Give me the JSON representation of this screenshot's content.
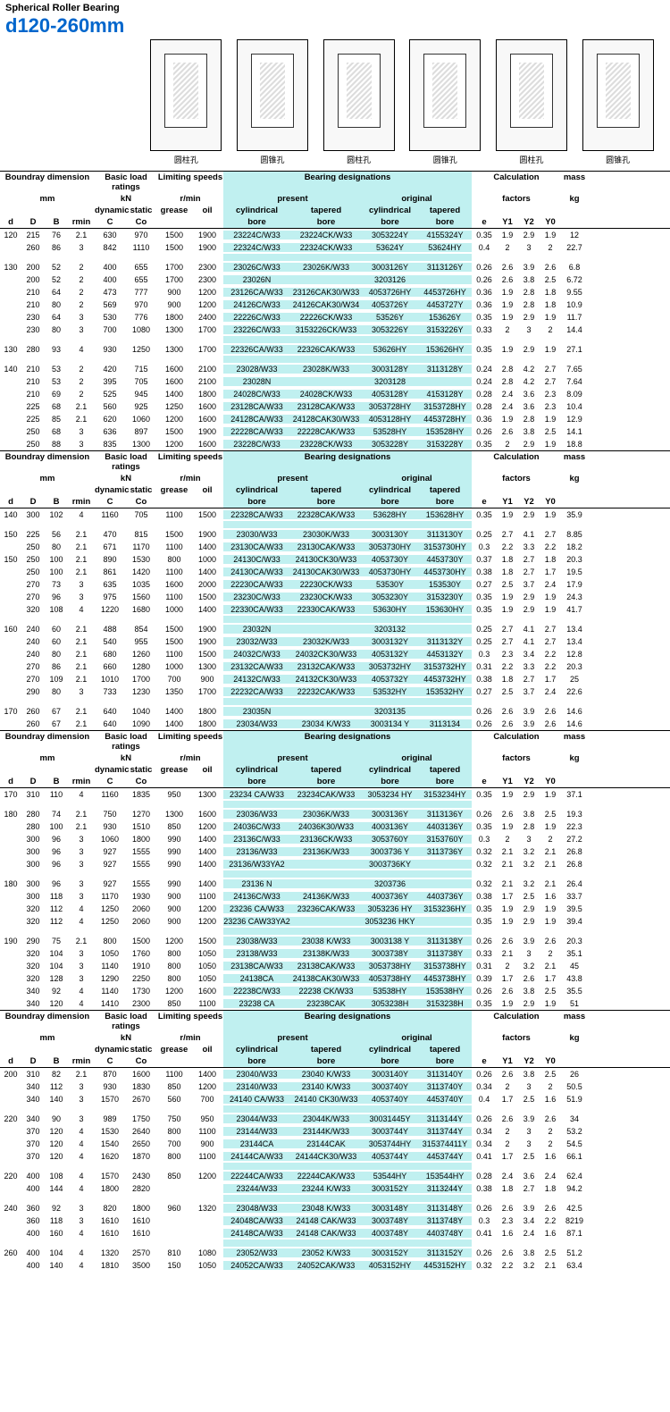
{
  "title": "Spherical Roller Bearing",
  "size_range": "d120-260mm",
  "size_range_color": "#0066cc",
  "highlight_color": "#c0f0f0",
  "diagram_captions": [
    "圆柱孔",
    "圆锥孔",
    "圆柱孔",
    "圆锥孔",
    "圆柱孔",
    "圆锥孔"
  ],
  "header": {
    "group_dim": "Boundray dimension",
    "unit_dim": "mm",
    "group_load": "Basic load ratings",
    "unit_load": "kN",
    "load_dynamic": "dynamic",
    "load_static": "static",
    "group_speed": "Limiting speeds",
    "unit_speed": "r/min",
    "speed_grease": "grease",
    "speed_oil": "oil",
    "group_des": "Bearing designations",
    "des_present": "present",
    "des_original": "original",
    "des_cyl": "cylindrical",
    "des_tap": "tapered",
    "des_bore": "bore",
    "group_calc": "Calculation",
    "unit_calc": "factors",
    "group_mass": "mass",
    "unit_mass": "kg",
    "d": "d",
    "D": "D",
    "B": "B",
    "rmin": "rmin",
    "C": "C",
    "Co": "Co",
    "e": "e",
    "Y1": "Y1",
    "Y2": "Y2",
    "Y0": "Y0"
  },
  "sections": [
    [
      [
        "120",
        "215",
        "76",
        "2.1",
        "630",
        "970",
        "1500",
        "1900",
        "23224C/W33",
        "23224CK/W33",
        "3053224Y",
        "4155324Y",
        "0.35",
        "1.9",
        "2.9",
        "1.9",
        "12"
      ],
      [
        "",
        "260",
        "86",
        "3",
        "842",
        "1110",
        "1500",
        "1900",
        "22324C/W33",
        "22324CK/W33",
        "53624Y",
        "53624HY",
        "0.4",
        "2",
        "3",
        "2",
        "22.7"
      ],
      [
        "gap"
      ],
      [
        "130",
        "200",
        "52",
        "2",
        "400",
        "655",
        "1700",
        "2300",
        "23026C/W33",
        "23026K/W33",
        "3003126Y",
        "3113126Y",
        "0.26",
        "2.6",
        "3.9",
        "2.6",
        "6.8"
      ],
      [
        "",
        "200",
        "52",
        "2",
        "400",
        "655",
        "1700",
        "2300",
        "23026N",
        "",
        "3203126",
        "",
        "0.26",
        "2.6",
        "3.8",
        "2.5",
        "6.72"
      ],
      [
        "",
        "210",
        "64",
        "2",
        "473",
        "777",
        "900",
        "1200",
        "23126CA/W33",
        "23126CAK30/W33",
        "4053726HY",
        "4453726HY",
        "0.36",
        "1.9",
        "2.8",
        "1.8",
        "9.55"
      ],
      [
        "",
        "210",
        "80",
        "2",
        "569",
        "970",
        "900",
        "1200",
        "24126C/W33",
        "24126CAK30/W34",
        "4053726Y",
        "4453727Y",
        "0.36",
        "1.9",
        "2.8",
        "1.8",
        "10.9"
      ],
      [
        "",
        "230",
        "64",
        "3",
        "530",
        "776",
        "1800",
        "2400",
        "22226C/W33",
        "22226CK/W33",
        "53526Y",
        "153626Y",
        "0.35",
        "1.9",
        "2.9",
        "1.9",
        "11.7"
      ],
      [
        "",
        "230",
        "80",
        "3",
        "700",
        "1080",
        "1300",
        "1700",
        "23226C/W33",
        "3153226CK/W33",
        "3053226Y",
        "3153226Y",
        "0.33",
        "2",
        "3",
        "2",
        "14.4"
      ],
      [
        "gap"
      ],
      [
        "130",
        "280",
        "93",
        "4",
        "930",
        "1250",
        "1300",
        "1700",
        "22326CA/W33",
        "22326CAK/W33",
        "53626HY",
        "153626HY",
        "0.35",
        "1.9",
        "2.9",
        "1.9",
        "27.1"
      ],
      [
        "gap"
      ],
      [
        "140",
        "210",
        "53",
        "2",
        "420",
        "715",
        "1600",
        "2100",
        "23028/W33",
        "23028K/W33",
        "3003128Y",
        "3113128Y",
        "0.24",
        "2.8",
        "4.2",
        "2.7",
        "7.65"
      ],
      [
        "",
        "210",
        "53",
        "2",
        "395",
        "705",
        "1600",
        "2100",
        "23028N",
        "",
        "3203128",
        "",
        "0.24",
        "2.8",
        "4.2",
        "2.7",
        "7.64"
      ],
      [
        "",
        "210",
        "69",
        "2",
        "525",
        "945",
        "1400",
        "1800",
        "24028C/W33",
        "24028CK/W33",
        "4053128Y",
        "4153128Y",
        "0.28",
        "2.4",
        "3.6",
        "2.3",
        "8.09"
      ],
      [
        "",
        "225",
        "68",
        "2.1",
        "560",
        "925",
        "1250",
        "1600",
        "23128CA/W33",
        "23128CAK/W33",
        "3053728HY",
        "3153728HY",
        "0.28",
        "2.4",
        "3.6",
        "2.3",
        "10.4"
      ],
      [
        "",
        "225",
        "85",
        "2.1",
        "620",
        "1060",
        "1200",
        "1600",
        "24128CA/W33",
        "24128CAK30/W33",
        "4053128HY",
        "4453728HY",
        "0.36",
        "1.9",
        "2.8",
        "1.9",
        "12.9"
      ],
      [
        "",
        "250",
        "68",
        "3",
        "636",
        "897",
        "1500",
        "1900",
        "22228CA/W33",
        "22228CAK/W33",
        "53528HY",
        "153528HY",
        "0.26",
        "2.6",
        "3.8",
        "2.5",
        "14.1"
      ],
      [
        "",
        "250",
        "88",
        "3",
        "835",
        "1300",
        "1200",
        "1600",
        "23228C/W33",
        "23228CK/W33",
        "3053228Y",
        "3153228Y",
        "0.35",
        "2",
        "2.9",
        "1.9",
        "18.8"
      ]
    ],
    [
      [
        "140",
        "300",
        "102",
        "4",
        "1160",
        "705",
        "1100",
        "1500",
        "22328CA/W33",
        "22328CAK/W33",
        "53628HY",
        "153628HY",
        "0.35",
        "1.9",
        "2.9",
        "1.9",
        "35.9"
      ],
      [
        "gap"
      ],
      [
        "150",
        "225",
        "56",
        "2.1",
        "470",
        "815",
        "1500",
        "1900",
        "23030/W33",
        "23030K/W33",
        "3003130Y",
        "3113130Y",
        "0.25",
        "2.7",
        "4.1",
        "2.7",
        "8.85"
      ],
      [
        "",
        "250",
        "80",
        "2.1",
        "671",
        "1170",
        "1100",
        "1400",
        "23130CA/W33",
        "23130CAK/W33",
        "3053730HY",
        "3153730HY",
        "0.3",
        "2.2",
        "3.3",
        "2.2",
        "18.2"
      ],
      [
        "150",
        "250",
        "100",
        "2.1",
        "890",
        "1530",
        "800",
        "1000",
        "24130C/W33",
        "24130CK30/W33",
        "4053730Y",
        "4453730Y",
        "0.37",
        "1.8",
        "2.7",
        "1.8",
        "20.3"
      ],
      [
        "",
        "250",
        "100",
        "2.1",
        "861",
        "1420",
        "1100",
        "1400",
        "24130CA/W33",
        "24130CAK30/W33",
        "4053730HY",
        "4453730HY",
        "0.38",
        "1.8",
        "2.7",
        "1.7",
        "19.5"
      ],
      [
        "",
        "270",
        "73",
        "3",
        "635",
        "1035",
        "1600",
        "2000",
        "22230CA/W33",
        "22230CK/W33",
        "53530Y",
        "153530Y",
        "0.27",
        "2.5",
        "3.7",
        "2.4",
        "17.9"
      ],
      [
        "",
        "270",
        "96",
        "3",
        "975",
        "1560",
        "1100",
        "1500",
        "23230C/W33",
        "23230CK/W33",
        "3053230Y",
        "3153230Y",
        "0.35",
        "1.9",
        "2.9",
        "1.9",
        "24.3"
      ],
      [
        "",
        "320",
        "108",
        "4",
        "1220",
        "1680",
        "1000",
        "1400",
        "22330CA/W33",
        "22330CAK/W33",
        "53630HY",
        "153630HY",
        "0.35",
        "1.9",
        "2.9",
        "1.9",
        "41.7"
      ],
      [
        "gap"
      ],
      [
        "160",
        "240",
        "60",
        "2.1",
        "488",
        "854",
        "1500",
        "1900",
        "23032N",
        "",
        "3203132",
        "",
        "0.25",
        "2.7",
        "4.1",
        "2.7",
        "13.4"
      ],
      [
        "",
        "240",
        "60",
        "2.1",
        "540",
        "955",
        "1500",
        "1900",
        "23032/W33",
        "23032K/W33",
        "3003132Y",
        "3113132Y",
        "0.25",
        "2.7",
        "4.1",
        "2.7",
        "13.4"
      ],
      [
        "",
        "240",
        "80",
        "2.1",
        "680",
        "1260",
        "1100",
        "1500",
        "24032C/W33",
        "24032CK30/W33",
        "4053132Y",
        "4453132Y",
        "0.3",
        "2.3",
        "3.4",
        "2.2",
        "12.8"
      ],
      [
        "",
        "270",
        "86",
        "2.1",
        "660",
        "1280",
        "1000",
        "1300",
        "23132CA/W33",
        "23132CAK/W33",
        "3053732HY",
        "3153732HY",
        "0.31",
        "2.2",
        "3.3",
        "2.2",
        "20.3"
      ],
      [
        "",
        "270",
        "109",
        "2.1",
        "1010",
        "1700",
        "700",
        "900",
        "24132C/W33",
        "24132CK30/W33",
        "4053732Y",
        "4453732HY",
        "0.38",
        "1.8",
        "2.7",
        "1.7",
        "25"
      ],
      [
        "",
        "290",
        "80",
        "3",
        "733",
        "1230",
        "1350",
        "1700",
        "22232CA/W33",
        "22232CAK/W33",
        "53532HY",
        "153532HY",
        "0.27",
        "2.5",
        "3.7",
        "2.4",
        "22.6"
      ],
      [
        "gap"
      ],
      [
        "170",
        "260",
        "67",
        "2.1",
        "640",
        "1040",
        "1400",
        "1800",
        "23035N",
        "",
        "3203135",
        "",
        "0.26",
        "2.6",
        "3.9",
        "2.6",
        "14.6"
      ],
      [
        "",
        "260",
        "67",
        "2.1",
        "640",
        "1090",
        "1400",
        "1800",
        "23034/W33",
        "23034 K/W33",
        "3003134 Y",
        "3113134",
        "0.26",
        "2.6",
        "3.9",
        "2.6",
        "14.6"
      ]
    ],
    [
      [
        "170",
        "310",
        "110",
        "4",
        "1160",
        "1835",
        "950",
        "1300",
        "23234 CA/W33",
        "23234CAK/W33",
        "3053234 HY",
        "3153234HY",
        "0.35",
        "1.9",
        "2.9",
        "1.9",
        "37.1"
      ],
      [
        "gap"
      ],
      [
        "180",
        "280",
        "74",
        "2.1",
        "750",
        "1270",
        "1300",
        "1600",
        "23036/W33",
        "23036K/W33",
        "3003136Y",
        "3113136Y",
        "0.26",
        "2.6",
        "3.8",
        "2.5",
        "19.3"
      ],
      [
        "",
        "280",
        "100",
        "2.1",
        "930",
        "1510",
        "850",
        "1200",
        "24036C/W33",
        "24036K30/W33",
        "4003136Y",
        "4403136Y",
        "0.35",
        "1.9",
        "2.8",
        "1.9",
        "22.3"
      ],
      [
        "",
        "300",
        "96",
        "3",
        "1060",
        "1800",
        "990",
        "1400",
        "23136C/W33",
        "23136CK/W33",
        "3053760Y",
        "3153760Y",
        "0.3",
        "2",
        "3",
        "2",
        "27.2"
      ],
      [
        "",
        "300",
        "96",
        "3",
        "927",
        "1555",
        "990",
        "1400",
        "23136/W33",
        "23136K/W33",
        "3003736 Y",
        "3113736Y",
        "0.32",
        "2.1",
        "3.2",
        "2.1",
        "26.8"
      ],
      [
        "",
        "300",
        "96",
        "3",
        "927",
        "1555",
        "990",
        "1400",
        "23136/W33YA2",
        "",
        "3003736KY",
        "",
        "0.32",
        "2.1",
        "3.2",
        "2.1",
        "26.8"
      ],
      [
        "gap"
      ],
      [
        "180",
        "300",
        "96",
        "3",
        "927",
        "1555",
        "990",
        "1400",
        "23136 N",
        "",
        "3203736",
        "",
        "0.32",
        "2.1",
        "3.2",
        "2.1",
        "26.4"
      ],
      [
        "",
        "300",
        "118",
        "3",
        "1170",
        "1930",
        "900",
        "1100",
        "24136C/W33",
        "24136K/W33",
        "4003736Y",
        "4403736Y",
        "0.38",
        "1.7",
        "2.5",
        "1.6",
        "33.7"
      ],
      [
        "",
        "320",
        "112",
        "4",
        "1250",
        "2060",
        "900",
        "1200",
        "23236 CA/W33",
        "23236CAK/W33",
        "3053236 HY",
        "3153236HY",
        "0.35",
        "1.9",
        "2.9",
        "1.9",
        "39.5"
      ],
      [
        "",
        "320",
        "112",
        "4",
        "1250",
        "2060",
        "900",
        "1200",
        "23236 CAW33YA2",
        "",
        "3053236 HKY",
        "",
        "0.35",
        "1.9",
        "2.9",
        "1.9",
        "39.4"
      ],
      [
        "gap"
      ],
      [
        "190",
        "290",
        "75",
        "2.1",
        "800",
        "1500",
        "1200",
        "1500",
        "23038/W33",
        "23038 K/W33",
        "3003138 Y",
        "3113138Y",
        "0.26",
        "2.6",
        "3.9",
        "2.6",
        "20.3"
      ],
      [
        "",
        "320",
        "104",
        "3",
        "1050",
        "1760",
        "800",
        "1050",
        "23138/W33",
        "23138K/W33",
        "3003738Y",
        "3113738Y",
        "0.33",
        "2.1",
        "3",
        "2",
        "35.1"
      ],
      [
        "",
        "320",
        "104",
        "3",
        "1140",
        "1910",
        "800",
        "1050",
        "23138CA/W33",
        "23138CAK/W33",
        "3053738HY",
        "3153738HY",
        "0.31",
        "2",
        "3.2",
        "2.1",
        "45"
      ],
      [
        "",
        "320",
        "128",
        "3",
        "1290",
        "2250",
        "800",
        "1050",
        "24138CA",
        "24138CAK30/W33",
        "4053738HY",
        "4453738HY",
        "0.39",
        "1.7",
        "2.6",
        "1.7",
        "43.8"
      ],
      [
        "",
        "340",
        "92",
        "4",
        "1140",
        "1730",
        "1200",
        "1600",
        "22238C/W33",
        "22238 CK/W33",
        "53538HY",
        "153538HY",
        "0.26",
        "2.6",
        "3.8",
        "2.5",
        "35.5"
      ],
      [
        "",
        "340",
        "120",
        "4",
        "1410",
        "2300",
        "850",
        "1100",
        "23238 CA",
        "23238CAK",
        "3053238H",
        "3153238H",
        "0.35",
        "1.9",
        "2.9",
        "1.9",
        "51"
      ]
    ],
    [
      [
        "200",
        "310",
        "82",
        "2.1",
        "870",
        "1600",
        "1100",
        "1400",
        "23040/W33",
        "23040 K/W33",
        "3003140Y",
        "3113140Y",
        "0.26",
        "2.6",
        "3.8",
        "2.5",
        "26"
      ],
      [
        "",
        "340",
        "112",
        "3",
        "930",
        "1830",
        "850",
        "1200",
        "23140/W33",
        "23140 K/W33",
        "3003740Y",
        "3113740Y",
        "0.34",
        "2",
        "3",
        "2",
        "50.5"
      ],
      [
        "",
        "340",
        "140",
        "3",
        "1570",
        "2670",
        "560",
        "700",
        "24140 CA/W33",
        "24140 CK30/W33",
        "4053740Y",
        "4453740Y",
        "0.4",
        "1.7",
        "2.5",
        "1.6",
        "51.9"
      ],
      [
        "gap"
      ],
      [
        "220",
        "340",
        "90",
        "3",
        "989",
        "1750",
        "750",
        "950",
        "23044/W33",
        "23044K/W33",
        "30031445Y",
        "3113144Y",
        "0.26",
        "2.6",
        "3.9",
        "2.6",
        "34"
      ],
      [
        "",
        "370",
        "120",
        "4",
        "1530",
        "2640",
        "800",
        "1100",
        "23144/W33",
        "23144K/W33",
        "3003744Y",
        "3113744Y",
        "0.34",
        "2",
        "3",
        "2",
        "53.2"
      ],
      [
        "",
        "370",
        "120",
        "4",
        "1540",
        "2650",
        "700",
        "900",
        "23144CA",
        "23144CAK",
        "3053744HY",
        "315374411Y",
        "0.34",
        "2",
        "3",
        "2",
        "54.5"
      ],
      [
        "",
        "370",
        "120",
        "4",
        "1620",
        "1870",
        "800",
        "1100",
        "24144CA/W33",
        "24144CK30/W33",
        "4053744Y",
        "4453744Y",
        "0.41",
        "1.7",
        "2.5",
        "1.6",
        "66.1"
      ],
      [
        "gap"
      ],
      [
        "220",
        "400",
        "108",
        "4",
        "1570",
        "2430",
        "850",
        "1200",
        "22244CA/W33",
        "22244CAK/W33",
        "53544HY",
        "153544HY",
        "0.28",
        "2.4",
        "3.6",
        "2.4",
        "62.4"
      ],
      [
        "",
        "400",
        "144",
        "4",
        "1800",
        "2820",
        "",
        "",
        "23244/W33",
        "23244 K/W33",
        "3003152Y",
        "3113244Y",
        "0.38",
        "1.8",
        "2.7",
        "1.8",
        "94.2"
      ],
      [
        "gap"
      ],
      [
        "240",
        "360",
        "92",
        "3",
        "820",
        "1800",
        "960",
        "1320",
        "23048/W33",
        "23048 K/W33",
        "3003148Y",
        "3113148Y",
        "0.26",
        "2.6",
        "3.9",
        "2.6",
        "42.5"
      ],
      [
        "",
        "360",
        "118",
        "3",
        "1610",
        "1610",
        "",
        "",
        "24048CA/W33",
        "24148 CAK/W33",
        "3003748Y",
        "3113748Y",
        "0.3",
        "2.3",
        "3.4",
        "2.2",
        "8219"
      ],
      [
        "",
        "400",
        "160",
        "4",
        "1610",
        "1610",
        "",
        "",
        "24148CA/W33",
        "24148 CAK/W33",
        "4003748Y",
        "4403748Y",
        "0.41",
        "1.6",
        "2.4",
        "1.6",
        "87.1"
      ],
      [
        "gap"
      ],
      [
        "260",
        "400",
        "104",
        "4",
        "1320",
        "2570",
        "810",
        "1080",
        "23052/W33",
        "23052 K/W33",
        "3003152Y",
        "3113152Y",
        "0.26",
        "2.6",
        "3.8",
        "2.5",
        "51.2"
      ],
      [
        "",
        "400",
        "140",
        "4",
        "1810",
        "3500",
        "150",
        "1050",
        "24052CA/W33",
        "24052CAK/W33",
        "4053152HY",
        "4453152HY",
        "0.32",
        "2.2",
        "3.2",
        "2.1",
        "63.4"
      ]
    ]
  ]
}
